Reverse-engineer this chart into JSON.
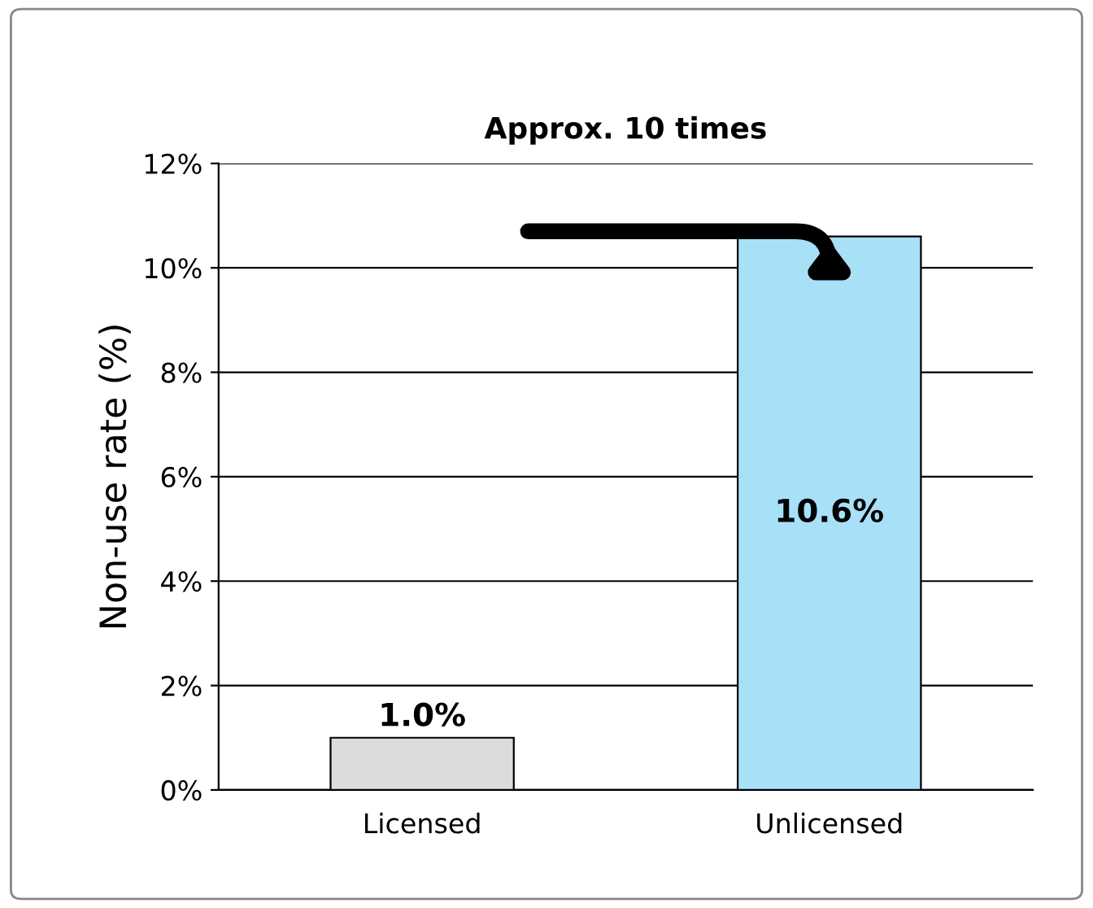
{
  "chart_data": {
    "type": "bar",
    "ylabel": "Non-use rate (%)",
    "categories": [
      "Licensed",
      "Unlicensed"
    ],
    "values": [
      1.0,
      10.6
    ],
    "colors": [
      "#dcdcdc",
      "#a8e0f8"
    ],
    "value_labels": [
      "1.0%",
      "10.6%"
    ],
    "annotations": [
      "Approx. 10 times"
    ],
    "ylim": [
      0,
      12
    ],
    "yticks": [
      {
        "value": 0,
        "label": "0%"
      },
      {
        "value": 2,
        "label": "2%"
      },
      {
        "value": 4,
        "label": "4%"
      },
      {
        "value": 6,
        "label": "6%"
      },
      {
        "value": 8,
        "label": "8%"
      },
      {
        "value": 10,
        "label": "10%"
      },
      {
        "value": 12,
        "label": "12%"
      }
    ],
    "grid": "y",
    "legend": false
  }
}
